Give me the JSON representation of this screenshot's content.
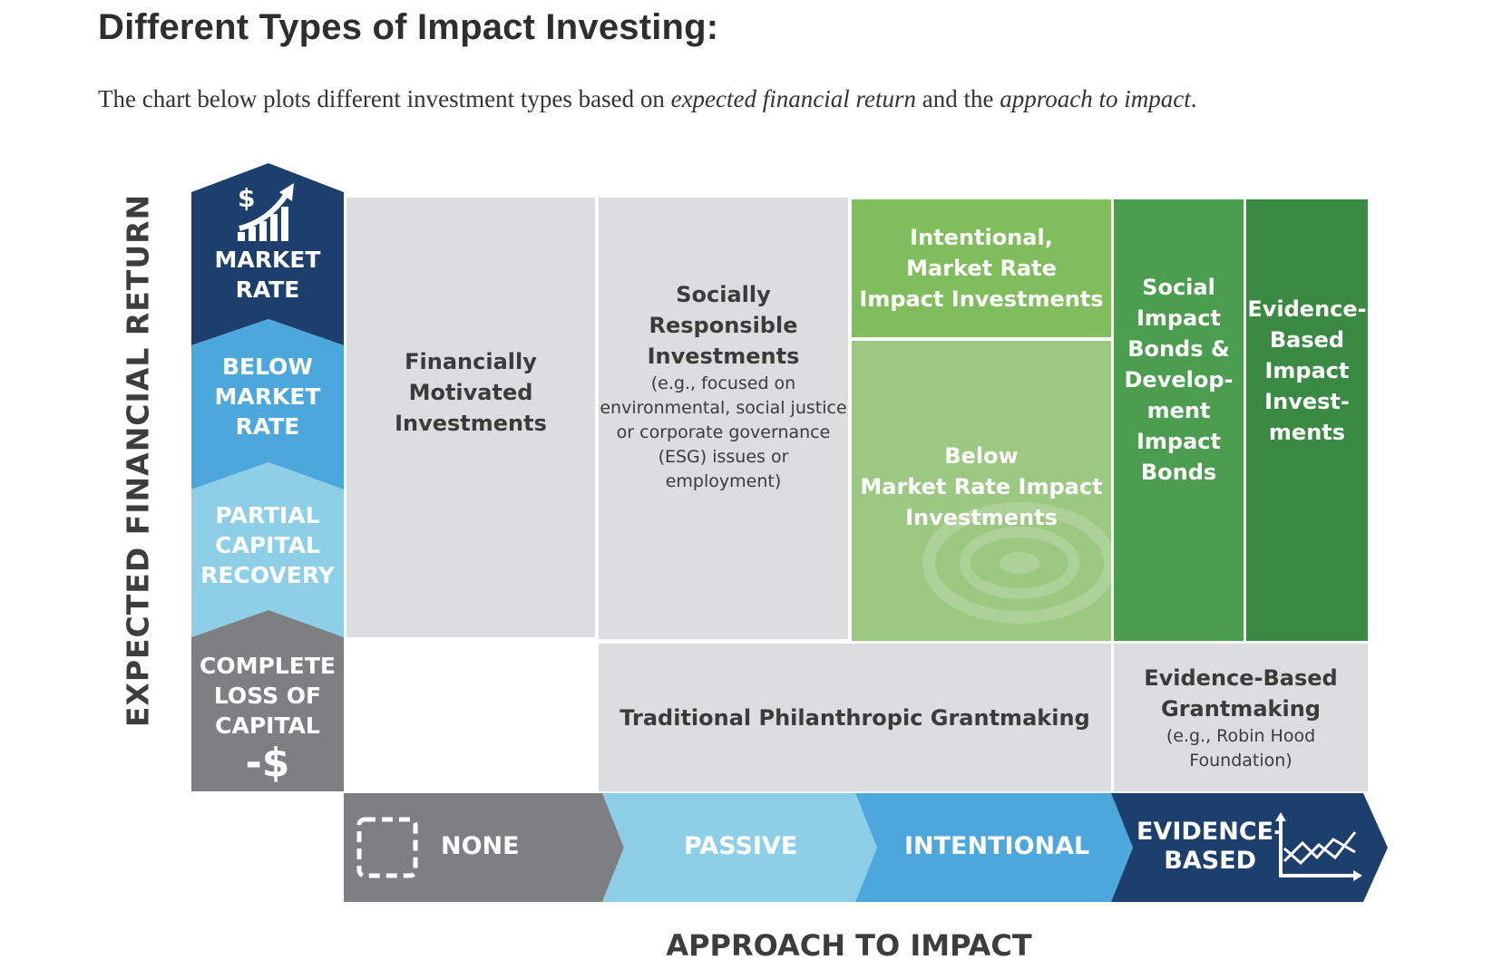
{
  "heading": "Different Types of Impact Investing:",
  "intro": {
    "before": "The chart below plots different investment types based on ",
    "em1": "expected financial return",
    "middle": " and the ",
    "em2": "approach to impact",
    "after": "."
  },
  "axes": {
    "y_label": "EXPECTED  FINANCIAL RETURN",
    "x_label": "APPROACH TO IMPACT"
  },
  "return_levels": [
    {
      "line1": "MARKET",
      "line2": "RATE",
      "icon": "dollar-growth-chart-icon"
    },
    {
      "line1": "BELOW",
      "line2": "MARKET",
      "line3": "RATE"
    },
    {
      "line1": "PARTIAL",
      "line2": "CAPITAL",
      "line3": "RECOVERY"
    },
    {
      "line1": "COMPLETE",
      "line2": "LOSS OF",
      "line3": "CAPITAL",
      "symbol": "-$"
    }
  ],
  "approaches": [
    {
      "label": "NONE",
      "icon": "dashed-square-icon"
    },
    {
      "label": "PASSIVE"
    },
    {
      "label": "INTENTIONAL"
    },
    {
      "line1": "EVIDENCE-",
      "line2": "BASED",
      "icon": "line-chart-icon"
    }
  ],
  "cells": {
    "financially_motivated": {
      "line1": "Financially",
      "line2": "Motivated",
      "line3": "Investments"
    },
    "socially_responsible": {
      "line1": "Socially",
      "line2": "Responsible",
      "line3": "Investments",
      "note1": "(e.g., focused on",
      "note2": "environmental, social justice",
      "note3": "or corporate governance",
      "note4": "(ESG) issues or employment)"
    },
    "intentional_market": {
      "line1": "Intentional,",
      "line2": "Market Rate",
      "line3": "Impact Investments"
    },
    "below_market": {
      "line1": "Below",
      "line2": "Market Rate Impact",
      "line3": "Investments"
    },
    "social_impact_bonds": {
      "line1": "Social",
      "line2": "Impact",
      "line3": "Bonds &",
      "line4": "Develop-",
      "line5": "ment",
      "line6": "Impact",
      "line7": "Bonds"
    },
    "evidence_based_impact": {
      "line1": "Evidence-",
      "line2": "Based",
      "line3": "Impact",
      "line4": "Invest-",
      "line5": "ments"
    },
    "traditional_grantmaking": {
      "line1": "Traditional Philanthropic Grantmaking"
    },
    "evidence_based_grantmaking": {
      "line1": "Evidence-Based",
      "line2": "Grantmaking",
      "note1": "(e.g., Robin Hood",
      "note2": "Foundation)"
    }
  },
  "colors": {
    "navy": "#1d3f6e",
    "blue": "#4ba7dc",
    "light_blue": "#8ecfe8",
    "gray_dark": "#7e7f82",
    "cell_gray": "#dcdddf",
    "green_light": "#80bd5c",
    "green_mid": "#9bc982",
    "green_dark": "#4b9e4f",
    "green_darker": "#3a8a43"
  }
}
